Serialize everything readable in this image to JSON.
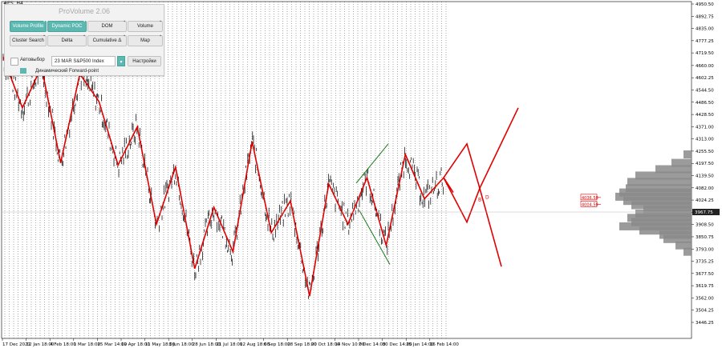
{
  "symbol": "#ES ,H4",
  "panel": {
    "title": "ProVolume 2.06",
    "buttons": [
      {
        "label": "Volume Profile",
        "active": true
      },
      {
        "label": "Dynamic POC",
        "active": true
      },
      {
        "label": "DOM",
        "active": false
      },
      {
        "label": "Volume",
        "active": false
      },
      {
        "label": "Cluster Search",
        "active": false
      },
      {
        "label": "Delta",
        "active": false
      },
      {
        "label": "Cumulative Δ",
        "active": false
      },
      {
        "label": "Map",
        "active": false
      }
    ],
    "autoselect_label": "Автовыбор",
    "instrument_value": "23 MAR S&P500 Index",
    "settings_label": "Настройки",
    "forward_point_label": "Динамический Forward-point"
  },
  "chart_data": {
    "type": "line",
    "symbol": "#ES ,H4",
    "ylim": [
      3390,
      4970
    ],
    "price_ticks": [
      "4950.50",
      "4892.75",
      "4835.00",
      "4777.25",
      "4719.50",
      "4660.00",
      "4602.25",
      "4544.50",
      "4486.50",
      "4428.50",
      "4371.00",
      "4313.00",
      "4255.50",
      "4197.50",
      "4139.50",
      "4082.00",
      "4024.25",
      "3966.50",
      "3908.50",
      "3850.75",
      "3793.00",
      "3735.25",
      "3677.50",
      "3619.75",
      "3562.00",
      "3504.25",
      "3446.25"
    ],
    "time_ticks": [
      "17 Dec 2021",
      "12 Jan 18:00",
      "4 Feb 18:00",
      "1 Mar 18:00",
      "25 Mar 14:00",
      "19 Apr 18:00",
      "11 May 18:00",
      "3 Jun 18:00",
      "28 Jun 18:00",
      "21 Jul 18:00",
      "12 Aug 18:00",
      "6 Sep 18:00",
      "28 Sep 18:00",
      "20 Oct 18:00",
      "14 Nov 10:00",
      "7 Dec 14:00",
      "30 Dec 14:00",
      "25 Jan 14:00",
      "16 Feb 14:00"
    ],
    "current_price": "3967.75",
    "level_labels": [
      "4036.50",
      "4004.50"
    ],
    "wave_labels": [
      "B",
      "D"
    ],
    "zigzag_price": [
      4700,
      4460,
      4655,
      4200,
      4620,
      4490,
      4190,
      4370,
      3910,
      4180,
      3700,
      3990,
      3780,
      4300,
      3870,
      4020,
      3570,
      4100,
      3910,
      4130,
      3810,
      4240,
      4030,
      4130
    ],
    "forecast_price": [
      4130,
      4290,
      3920,
      4080,
      3710,
      4460
    ],
    "channel_upper": [
      [
        4104,
        4290
      ]
    ],
    "channel_lower": [
      [
        3975,
        3720
      ]
    ],
    "volume_profile": [
      {
        "price": 4240,
        "volume": 0.1
      },
      {
        "price": 4200,
        "volume": 0.25
      },
      {
        "price": 4170,
        "volume": 0.45
      },
      {
        "price": 4140,
        "volume": 0.7
      },
      {
        "price": 4110,
        "volume": 0.8
      },
      {
        "price": 4080,
        "volume": 0.82
      },
      {
        "price": 4060,
        "volume": 0.9
      },
      {
        "price": 4040,
        "volume": 0.95
      },
      {
        "price": 4020,
        "volume": 0.85
      },
      {
        "price": 4000,
        "volume": 0.75
      },
      {
        "price": 3980,
        "volume": 0.6
      },
      {
        "price": 3960,
        "volume": 0.7
      },
      {
        "price": 3940,
        "volume": 0.8
      },
      {
        "price": 3920,
        "volume": 0.75
      },
      {
        "price": 3900,
        "volume": 0.9
      },
      {
        "price": 3880,
        "volume": 0.65
      },
      {
        "price": 3860,
        "volume": 0.4
      },
      {
        "price": 3840,
        "volume": 0.35
      },
      {
        "price": 3810,
        "volume": 0.2
      },
      {
        "price": 3780,
        "volume": 0.1
      }
    ],
    "colors": {
      "zigzag": "#e00000",
      "channel": "#1a7a1a",
      "price": "#000000",
      "profile": "#8a8a8a",
      "grid": "#000000"
    }
  }
}
